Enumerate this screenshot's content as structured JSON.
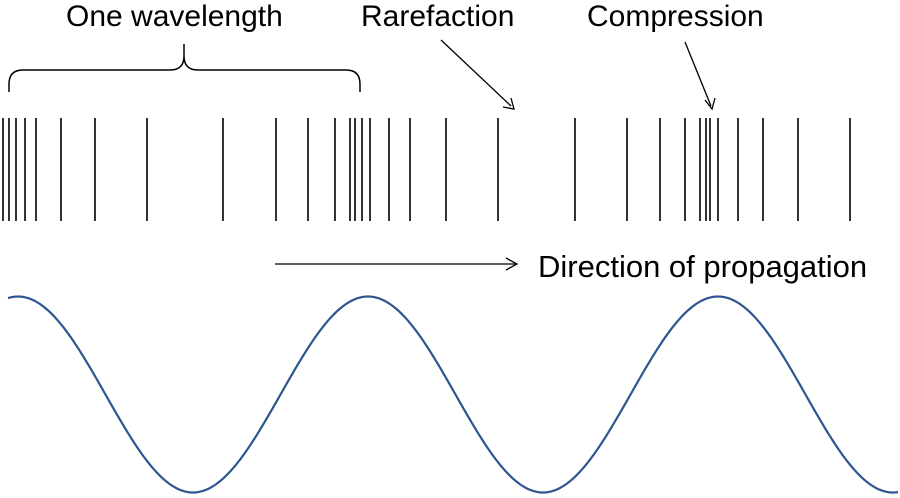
{
  "labels": {
    "wavelength": "One wavelength",
    "rarefaction": "Rarefaction",
    "compression": "Compression",
    "direction": "Direction of propagation"
  },
  "colors": {
    "ink": "#000000",
    "wave": "#2e5590",
    "background": "#ffffff"
  }
}
